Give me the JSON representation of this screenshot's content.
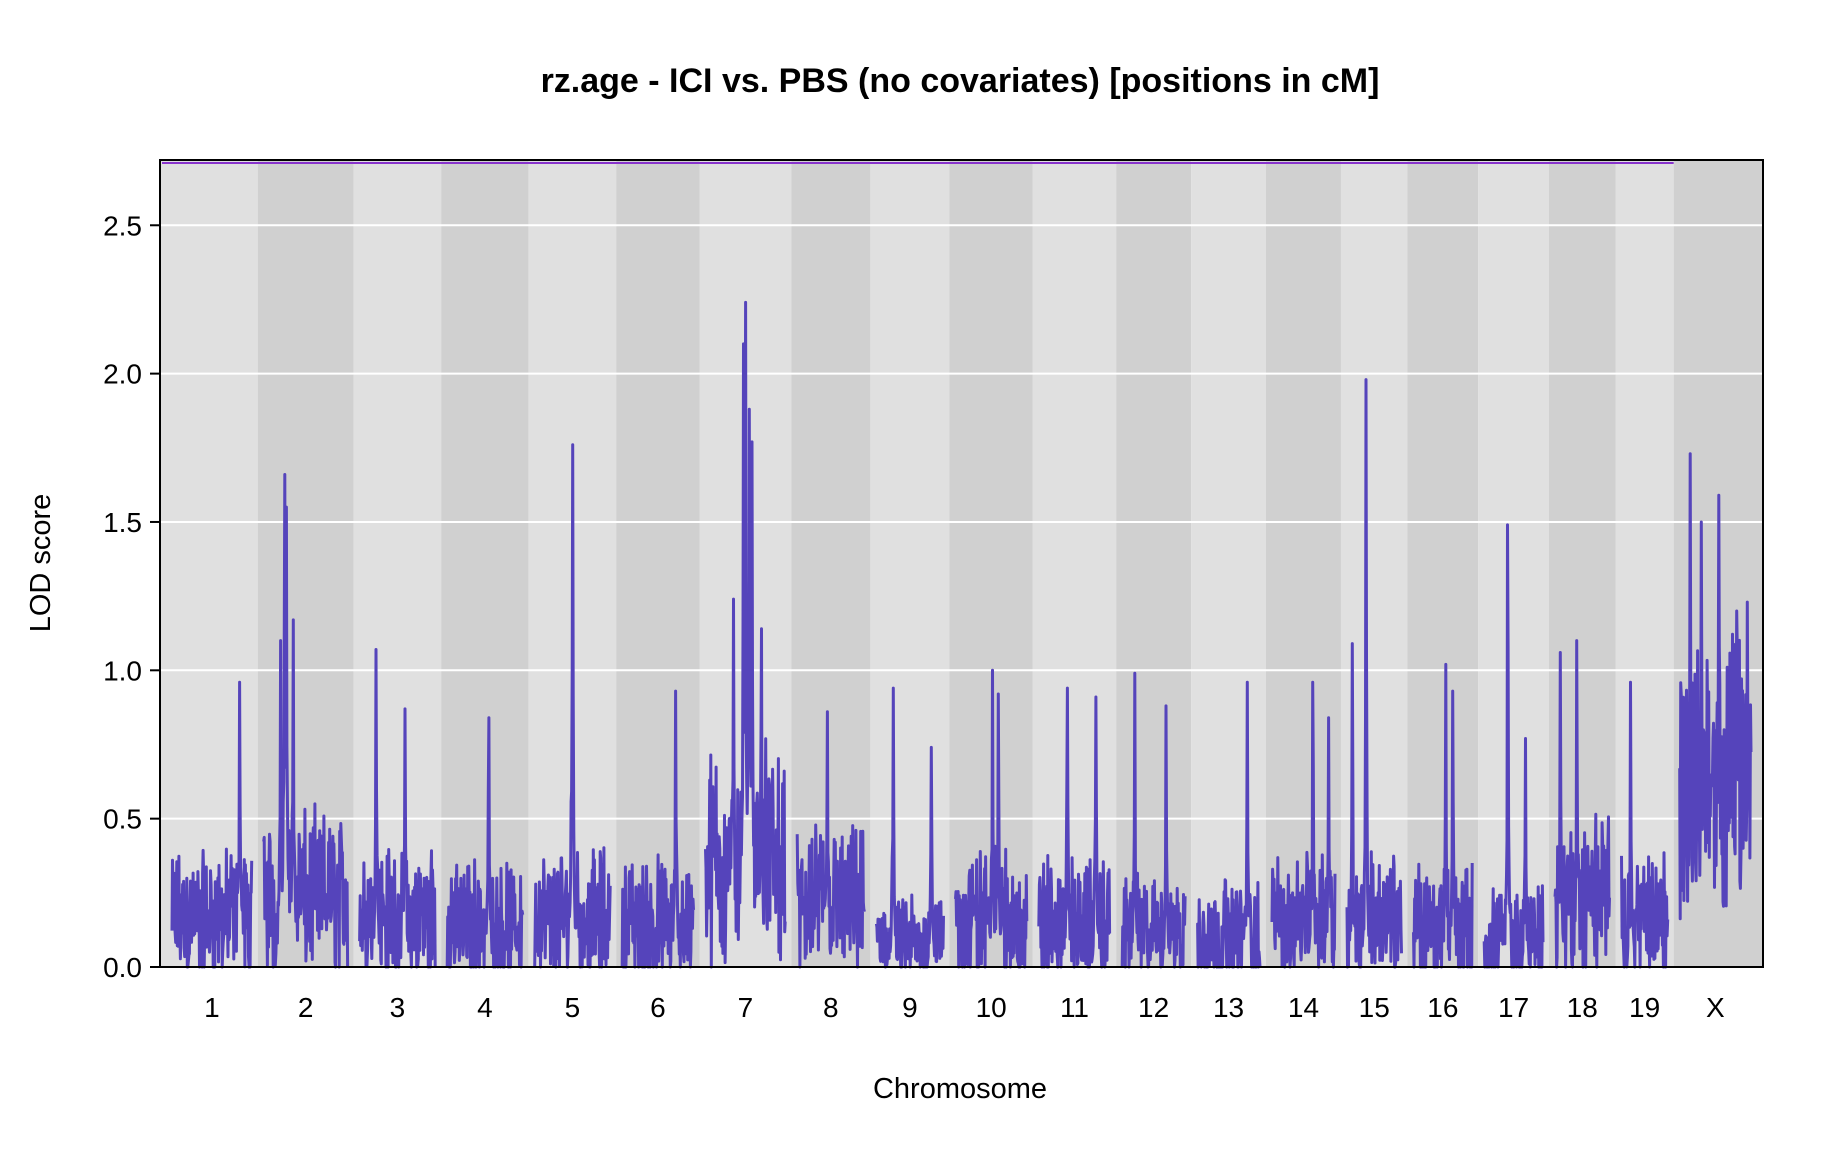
{
  "chart_data": {
    "type": "line",
    "title": "rz.age - ICI vs. PBS (no covariates) [positions in cM]",
    "xlabel": "Chromosome",
    "ylabel": "LOD score",
    "ylim": [
      0,
      2.72
    ],
    "yticks": [
      "0.0",
      "0.5",
      "1.0",
      "1.5",
      "2.0",
      "2.5"
    ],
    "threshold": 2.71,
    "grid": true,
    "line_color": "#5544bb",
    "threshold_color": "#8833cc",
    "band_colors": [
      "#e0e0e0",
      "#d0d0d0"
    ],
    "chromosomes": [
      {
        "label": "1",
        "length": 95,
        "base": 0.2,
        "amp": 0.35,
        "peaks": [
          [
            0.85,
            0.96
          ]
        ]
      },
      {
        "label": "2",
        "length": 100,
        "base": 0.3,
        "amp": 0.35,
        "peaks": [
          [
            0.25,
            1.66
          ],
          [
            0.27,
            1.55
          ],
          [
            0.35,
            1.17
          ],
          [
            0.2,
            1.1
          ]
        ]
      },
      {
        "label": "3",
        "length": 90,
        "base": 0.22,
        "amp": 0.35,
        "peaks": [
          [
            0.22,
            1.07
          ],
          [
            0.6,
            0.87
          ]
        ]
      },
      {
        "label": "4",
        "length": 90,
        "base": 0.18,
        "amp": 0.3,
        "peaks": [
          [
            0.55,
            0.84
          ]
        ]
      },
      {
        "label": "5",
        "length": 90,
        "base": 0.2,
        "amp": 0.35,
        "peaks": [
          [
            0.5,
            1.76
          ]
        ]
      },
      {
        "label": "6",
        "length": 85,
        "base": 0.18,
        "amp": 0.35,
        "peaks": [
          [
            0.75,
            0.93
          ]
        ]
      },
      {
        "label": "7",
        "length": 95,
        "base": 0.45,
        "amp": 0.45,
        "peaks": [
          [
            0.5,
            2.24
          ],
          [
            0.48,
            2.1
          ],
          [
            0.55,
            1.88
          ],
          [
            0.58,
            1.77
          ],
          [
            0.35,
            1.24
          ],
          [
            0.7,
            1.14
          ]
        ]
      },
      {
        "label": "8",
        "length": 80,
        "base": 0.25,
        "amp": 0.35,
        "peaks": [
          [
            0.45,
            0.86
          ]
        ]
      },
      {
        "label": "9",
        "length": 80,
        "base": 0.1,
        "amp": 0.25,
        "peaks": [
          [
            0.25,
            0.94
          ],
          [
            0.82,
            0.74
          ]
        ]
      },
      {
        "label": "10",
        "length": 85,
        "base": 0.2,
        "amp": 0.35,
        "peaks": [
          [
            0.52,
            1.0
          ],
          [
            0.6,
            0.92
          ]
        ]
      },
      {
        "label": "11",
        "length": 85,
        "base": 0.17,
        "amp": 0.35,
        "peaks": [
          [
            0.4,
            0.94
          ],
          [
            0.8,
            0.91
          ]
        ]
      },
      {
        "label": "12",
        "length": 75,
        "base": 0.15,
        "amp": 0.3,
        "peaks": [
          [
            0.2,
            0.99
          ],
          [
            0.7,
            0.88
          ]
        ]
      },
      {
        "label": "13",
        "length": 75,
        "base": 0.13,
        "amp": 0.3,
        "peaks": [
          [
            0.8,
            0.96
          ]
        ]
      },
      {
        "label": "14",
        "length": 75,
        "base": 0.2,
        "amp": 0.3,
        "peaks": [
          [
            0.65,
            0.96
          ],
          [
            0.9,
            0.84
          ]
        ]
      },
      {
        "label": "15",
        "length": 65,
        "base": 0.2,
        "amp": 0.35,
        "peaks": [
          [
            0.35,
            1.98
          ],
          [
            0.1,
            1.09
          ]
        ]
      },
      {
        "label": "16",
        "length": 70,
        "base": 0.15,
        "amp": 0.35,
        "peaks": [
          [
            0.55,
            1.02
          ],
          [
            0.67,
            0.93
          ]
        ]
      },
      {
        "label": "17",
        "length": 70,
        "base": 0.12,
        "amp": 0.3,
        "peaks": [
          [
            0.4,
            1.49
          ],
          [
            0.7,
            0.77
          ]
        ]
      },
      {
        "label": "18",
        "length": 65,
        "base": 0.3,
        "amp": 0.35,
        "peaks": [
          [
            0.4,
            1.1
          ],
          [
            0.1,
            1.06
          ]
        ]
      },
      {
        "label": "19",
        "length": 55,
        "base": 0.2,
        "amp": 0.3,
        "peaks": [
          [
            0.2,
            0.96
          ]
        ]
      },
      {
        "label": "X",
        "length": 85,
        "base": 0.78,
        "amp": 0.3,
        "peaks": [
          [
            0.15,
            1.73
          ],
          [
            0.55,
            1.59
          ],
          [
            0.3,
            1.5
          ],
          [
            0.95,
            1.23
          ],
          [
            0.8,
            1.2
          ]
        ]
      }
    ]
  }
}
